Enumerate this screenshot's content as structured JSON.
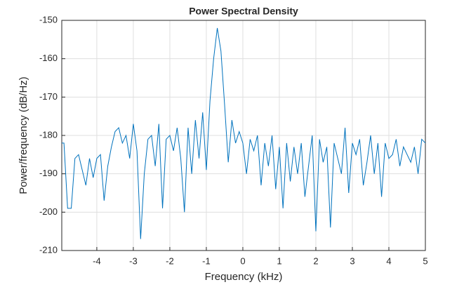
{
  "chart_data": {
    "type": "line",
    "title": "Power Spectral Density",
    "xlabel": "Frequency (kHz)",
    "ylabel": "Power/frequency (dB/Hz)",
    "x": [
      -4.96,
      -4.9,
      -4.8,
      -4.7,
      -4.6,
      -4.5,
      -4.4,
      -4.3,
      -4.2,
      -4.1,
      -4.0,
      -3.9,
      -3.8,
      -3.7,
      -3.6,
      -3.5,
      -3.4,
      -3.3,
      -3.2,
      -3.1,
      -3.0,
      -2.9,
      -2.8,
      -2.7,
      -2.6,
      -2.5,
      -2.4,
      -2.3,
      -2.2,
      -2.1,
      -2.0,
      -1.9,
      -1.8,
      -1.7,
      -1.6,
      -1.5,
      -1.4,
      -1.3,
      -1.2,
      -1.1,
      -1.0,
      -0.9,
      -0.8,
      -0.7,
      -0.6,
      -0.5,
      -0.4,
      -0.3,
      -0.2,
      -0.1,
      0.0,
      0.1,
      0.2,
      0.3,
      0.4,
      0.5,
      0.6,
      0.7,
      0.8,
      0.9,
      1.0,
      1.1,
      1.2,
      1.3,
      1.4,
      1.5,
      1.6,
      1.7,
      1.8,
      1.9,
      2.0,
      2.1,
      2.2,
      2.3,
      2.4,
      2.5,
      2.6,
      2.7,
      2.8,
      2.9,
      3.0,
      3.1,
      3.2,
      3.3,
      3.4,
      3.5,
      3.6,
      3.7,
      3.8,
      3.9,
      4.0,
      4.1,
      4.2,
      4.3,
      4.4,
      4.5,
      4.6,
      4.7,
      4.8,
      4.9,
      5.0
    ],
    "series": [
      {
        "color": "#0072bd",
        "values": [
          -182,
          -182,
          -199,
          -199,
          -186,
          -185,
          -189,
          -193,
          -186,
          -191,
          -186,
          -185,
          -197,
          -188,
          -183,
          -179,
          -178,
          -182,
          -180,
          -186,
          -177,
          -184,
          -207,
          -190,
          -181,
          -180,
          -188,
          -177,
          -199,
          -181,
          -180,
          -184,
          -178,
          -186,
          -200,
          -178,
          -190,
          -176,
          -186,
          -174,
          -189,
          -171,
          -160,
          -152,
          -158,
          -172,
          -187,
          -176,
          -182,
          -179,
          -182,
          -190,
          -181,
          -184,
          -180,
          -193,
          -182,
          -188,
          -180,
          -194,
          -183,
          -199,
          -182,
          -192,
          -183,
          -190,
          -182,
          -196,
          -188,
          -180,
          -205,
          -181,
          -187,
          -183,
          -204,
          -182,
          -186,
          -190,
          -178,
          -195,
          -182,
          -185,
          -181,
          -193,
          -187,
          -180,
          -190,
          -182,
          -196,
          -182,
          -186,
          -185,
          -181,
          -188,
          -183,
          -185,
          -187,
          -183,
          -190,
          -181,
          -182
        ]
      }
    ],
    "xlim": [
      -4.96,
      5
    ],
    "ylim": [
      -210,
      -150
    ],
    "xticks": [
      -4,
      -3,
      -2,
      -1,
      0,
      1,
      2,
      3,
      4,
      5
    ],
    "yticks": [
      -210,
      -200,
      -190,
      -180,
      -170,
      -160,
      -150
    ],
    "grid": true
  }
}
